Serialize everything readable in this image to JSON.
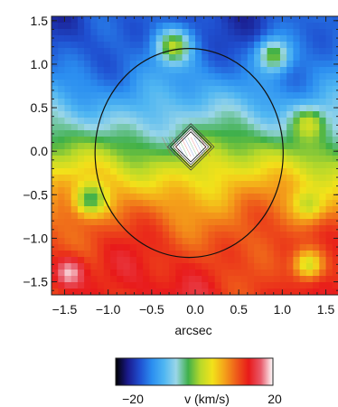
{
  "chart_data": {
    "type": "heatmap",
    "title": "",
    "xlabel": "arcsec",
    "ylabel": "",
    "xlim": [
      -1.65,
      1.65
    ],
    "ylim": [
      -1.65,
      1.55
    ],
    "x_ticks": [
      "−1.5",
      "−1.0",
      "−0.5",
      "0.0",
      "0.5",
      "1.0",
      "1.5"
    ],
    "x_tick_values": [
      -1.5,
      -1.0,
      -0.5,
      0.0,
      0.5,
      1.0,
      1.5
    ],
    "y_ticks": [
      "1.5",
      "1.0",
      "0.5",
      "0.0",
      "−0.5",
      "−1.0",
      "−1.5"
    ],
    "y_tick_values": [
      1.5,
      1.0,
      0.5,
      0.0,
      -0.5,
      -1.0,
      -1.5
    ],
    "colorbar": {
      "min": -20,
      "max": 20,
      "min_label": "−20",
      "max_label": "20",
      "label": "v (km/s)",
      "colors": [
        "#000000",
        "#1a1a8c",
        "#1f4fd0",
        "#2b8ef0",
        "#4fb6f2",
        "#9ad6e8",
        "#3fb04a",
        "#b8d92a",
        "#f2e21a",
        "#f4a21a",
        "#ee5a1a",
        "#e81a1a",
        "#e85a6a",
        "#ffffff"
      ]
    },
    "field": {
      "description_of_gradient": "velocity increases from top (negative, blue) to bottom (positive, red)",
      "vmin_top": -14,
      "vmax_bottom": 13,
      "anomalies": [
        {
          "x": -0.25,
          "y": 1.2,
          "v": 2
        },
        {
          "x": 0.9,
          "y": 1.1,
          "v": 0
        },
        {
          "x": 1.3,
          "y": 0.3,
          "v": 3
        },
        {
          "x": -1.2,
          "y": -0.55,
          "v": -2
        },
        {
          "x": 1.3,
          "y": -0.6,
          "v": 2
        },
        {
          "x": 1.3,
          "y": -1.3,
          "v": 3
        },
        {
          "x": -1.45,
          "y": -1.4,
          "v": 19
        }
      ]
    },
    "contour": {
      "center": [
        -0.07,
        -0.02
      ],
      "rx": 1.08,
      "ry": 1.2
    },
    "center_marker": {
      "center": [
        -0.05,
        0.05
      ],
      "half_width": 0.22
    }
  }
}
